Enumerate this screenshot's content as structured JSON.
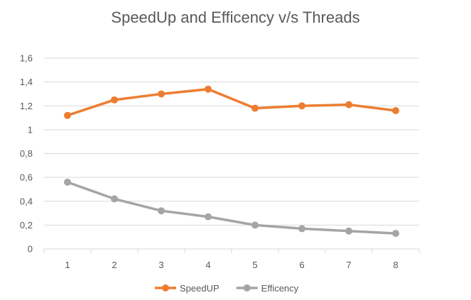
{
  "chart_data": {
    "type": "line",
    "title": "SpeedUp and Efficency v/s Threads",
    "categories": [
      "1",
      "2",
      "3",
      "4",
      "5",
      "6",
      "7",
      "8"
    ],
    "series": [
      {
        "name": "SpeedUP",
        "color": "#ed7d31",
        "values": [
          1.12,
          1.25,
          1.3,
          1.34,
          1.18,
          1.2,
          1.21,
          1.16
        ]
      },
      {
        "name": "Efficency",
        "color": "#a5a5a5",
        "values": [
          0.56,
          0.42,
          0.32,
          0.27,
          0.2,
          0.17,
          0.15,
          0.13
        ]
      }
    ],
    "ylim": [
      0,
      1.6
    ],
    "yticks": [
      "0",
      "0,2",
      "0,4",
      "0,6",
      "0,8",
      "1",
      "1,2",
      "1,4",
      "1,6"
    ],
    "grid": true,
    "legend": "bottom",
    "gridColor": "#d9d9d9"
  }
}
